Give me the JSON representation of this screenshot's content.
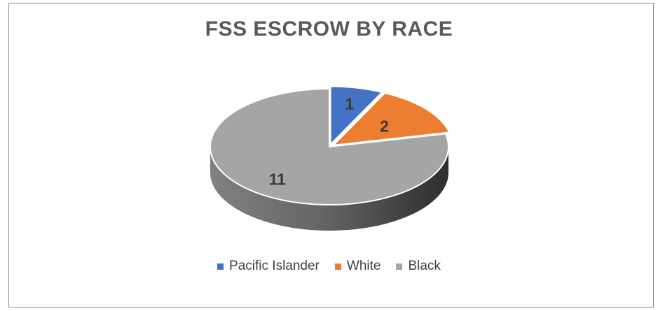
{
  "chart_data": {
    "type": "pie",
    "title": "FSS ESCROW BY RACE",
    "slices": [
      {
        "name": "Pacific Islander",
        "value": 1,
        "label": "1",
        "color": "#4472c4"
      },
      {
        "name": "White",
        "value": 2,
        "label": "2",
        "color": "#ed7d31"
      },
      {
        "name": "Black",
        "value": 11,
        "label": "11",
        "color": "#a5a5a5"
      }
    ],
    "legend_position": "bottom",
    "style": "3d"
  }
}
